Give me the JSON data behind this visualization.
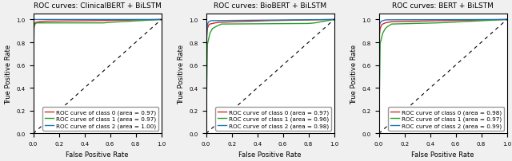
{
  "plots": [
    {
      "title": "ROC curves: ClinicalBERT + BiLSTM",
      "class0": {
        "area": 0.97,
        "color": "#d62728"
      },
      "class1": {
        "area": 0.97,
        "color": "#2ca02c"
      },
      "class2": {
        "area": 1.0,
        "color": "#1f77b4"
      }
    },
    {
      "title": "ROC curves: BioBERT + BiLSTM",
      "class0": {
        "area": 0.97,
        "color": "#d62728"
      },
      "class1": {
        "area": 0.96,
        "color": "#2ca02c"
      },
      "class2": {
        "area": 0.98,
        "color": "#1f77b4"
      }
    },
    {
      "title": "ROC curves: BERT + BiLSTM",
      "class0": {
        "area": 0.98,
        "color": "#d62728"
      },
      "class1": {
        "area": 0.97,
        "color": "#2ca02c"
      },
      "class2": {
        "area": 0.99,
        "color": "#1f77b4"
      }
    }
  ],
  "xlabel": "False Positive Rate",
  "ylabel": "True Positive Rate",
  "legend_loc": "lower right",
  "legend_fontsize": 5.2,
  "title_fontsize": 6.5,
  "label_fontsize": 6,
  "tick_fontsize": 5,
  "roc_curves": {
    "plot0": {
      "class0": {
        "fpr": [
          0.0,
          0.005,
          0.008,
          0.01,
          0.012,
          0.015,
          0.02,
          0.05,
          0.1,
          0.5,
          1.0
        ],
        "tpr": [
          0.0,
          0.92,
          0.95,
          0.96,
          0.965,
          0.97,
          0.975,
          0.98,
          0.985,
          0.99,
          1.0
        ]
      },
      "class1": {
        "fpr": [
          0.0,
          0.005,
          0.01,
          0.015,
          0.02,
          0.025,
          0.55,
          0.6,
          1.0
        ],
        "tpr": [
          0.0,
          0.93,
          0.955,
          0.96,
          0.965,
          0.97,
          0.97,
          0.975,
          1.0
        ]
      },
      "class2": {
        "fpr": [
          0.0,
          0.003,
          0.005,
          0.01,
          0.02,
          1.0
        ],
        "tpr": [
          0.0,
          0.98,
          0.995,
          1.0,
          1.0,
          1.0
        ]
      }
    },
    "plot1": {
      "class0": {
        "fpr": [
          0.0,
          0.005,
          0.01,
          0.02,
          0.03,
          0.05,
          0.07,
          0.1,
          0.5,
          1.0
        ],
        "tpr": [
          0.0,
          0.86,
          0.92,
          0.95,
          0.96,
          0.965,
          0.97,
          0.975,
          0.99,
          1.0
        ]
      },
      "class1": {
        "fpr": [
          0.0,
          0.01,
          0.03,
          0.05,
          0.08,
          0.1,
          0.12,
          0.8,
          0.85,
          1.0
        ],
        "tpr": [
          0.0,
          0.78,
          0.88,
          0.92,
          0.94,
          0.95,
          0.96,
          0.965,
          0.97,
          1.0
        ]
      },
      "class2": {
        "fpr": [
          0.0,
          0.004,
          0.007,
          0.01,
          0.015,
          0.02,
          0.04,
          1.0
        ],
        "tpr": [
          0.0,
          0.8,
          0.9,
          0.95,
          0.97,
          0.98,
          0.99,
          1.0
        ]
      }
    },
    "plot2": {
      "class0": {
        "fpr": [
          0.0,
          0.005,
          0.01,
          0.02,
          0.03,
          0.05,
          0.07,
          0.1,
          0.5,
          1.0
        ],
        "tpr": [
          0.0,
          0.87,
          0.92,
          0.95,
          0.96,
          0.97,
          0.975,
          0.98,
          0.99,
          1.0
        ]
      },
      "class1": {
        "fpr": [
          0.0,
          0.01,
          0.03,
          0.05,
          0.07,
          0.1,
          0.45,
          0.5,
          1.0
        ],
        "tpr": [
          0.0,
          0.79,
          0.88,
          0.92,
          0.94,
          0.96,
          0.97,
          0.972,
          1.0
        ]
      },
      "class2": {
        "fpr": [
          0.0,
          0.003,
          0.005,
          0.01,
          0.02,
          0.04,
          0.06,
          1.0
        ],
        "tpr": [
          0.0,
          0.9,
          0.95,
          0.97,
          0.985,
          0.993,
          0.997,
          1.0
        ]
      }
    }
  }
}
